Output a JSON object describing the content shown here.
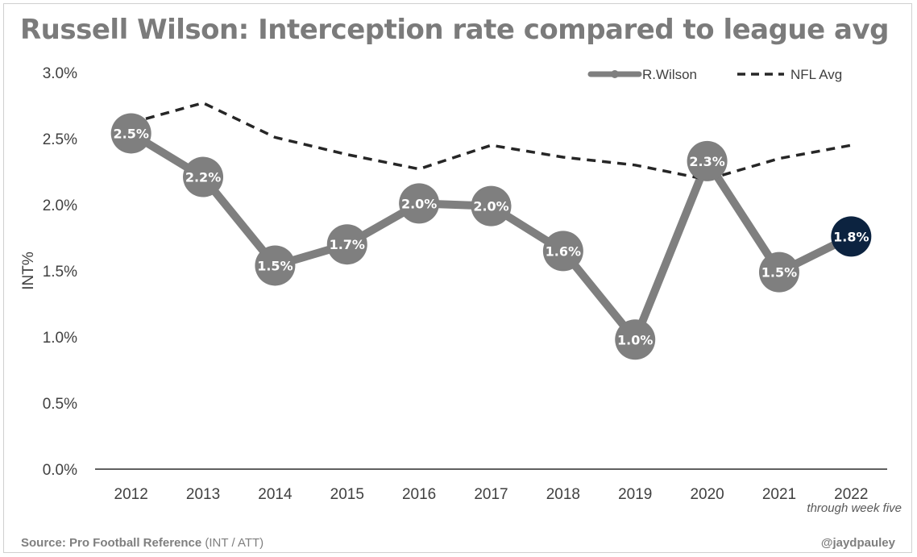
{
  "chart_data": {
    "type": "line",
    "title": "Russell Wilson: Interception rate compared to league avg",
    "ylabel": "INT%",
    "xlabel": "",
    "categories": [
      "2012",
      "2013",
      "2014",
      "2015",
      "2016",
      "2017",
      "2018",
      "2019",
      "2020",
      "2021",
      "2022"
    ],
    "ylim": [
      0,
      3.0
    ],
    "yticks": [
      "0.0%",
      "0.5%",
      "1.0%",
      "1.5%",
      "2.0%",
      "2.5%",
      "3.0%"
    ],
    "grid": false,
    "legend_position": "top-right",
    "series": [
      {
        "name": "R.Wilson",
        "style": "solid-markers",
        "color": "#7f7f7f",
        "highlight_color": "#0c2340",
        "values": [
          2.54,
          2.21,
          1.54,
          1.7,
          2.01,
          1.99,
          1.65,
          0.98,
          2.33,
          1.49,
          1.76
        ],
        "labels": [
          "2.5%",
          "2.2%",
          "1.5%",
          "1.7%",
          "2.0%",
          "2.0%",
          "1.6%",
          "1.0%",
          "2.3%",
          "1.5%",
          "1.8%"
        ]
      },
      {
        "name": "NFL Avg",
        "style": "dashed",
        "color": "#262626",
        "values": [
          2.62,
          2.77,
          2.51,
          2.38,
          2.27,
          2.45,
          2.36,
          2.3,
          2.19,
          2.35,
          2.45
        ]
      }
    ],
    "annotation": "through week five"
  },
  "footer": {
    "source_bold": "Source: Pro Football Reference",
    "source_rest": " (INT / ATT)",
    "handle": "@jaydpauley"
  }
}
